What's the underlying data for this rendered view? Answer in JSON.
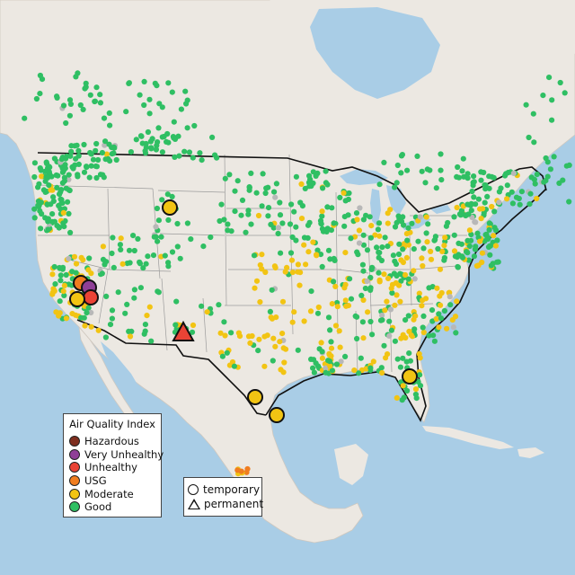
{
  "colors": {
    "water": "#a9cde6",
    "land": "#ece8e2",
    "state_border": "#9c9c9c",
    "country_border": "#111111",
    "hazardous": "#7e2e1f",
    "very_unhealthy": "#8f3f97",
    "unhealthy": "#ea4335",
    "usg": "#f07d1f",
    "moderate": "#f2c413",
    "good": "#2fbf63",
    "no_data": "#b8b8b8"
  },
  "legend": {
    "title": "Air Quality Index",
    "categories": [
      {
        "label": "Hazardous",
        "color_key": "hazardous"
      },
      {
        "label": "Very Unhealthy",
        "color_key": "very_unhealthy"
      },
      {
        "label": "Unhealthy",
        "color_key": "unhealthy"
      },
      {
        "label": "USG",
        "color_key": "usg"
      },
      {
        "label": "Moderate",
        "color_key": "moderate"
      },
      {
        "label": "Good",
        "color_key": "good"
      }
    ]
  },
  "marker_type_legend": {
    "items": [
      {
        "label": "temporary",
        "shape": "circle"
      },
      {
        "label": "permanent",
        "shape": "triangle"
      }
    ]
  },
  "highlighted_monitors": [
    {
      "location": "Montana",
      "category": "moderate",
      "type": "temporary"
    },
    {
      "location": "California (Sierra, north)",
      "category": "usg",
      "type": "temporary"
    },
    {
      "location": "California (Sierra)",
      "category": "very_unhealthy",
      "type": "temporary"
    },
    {
      "location": "California (Sierra, south)",
      "category": "unhealthy",
      "type": "temporary"
    },
    {
      "location": "California (Central Valley)",
      "category": "moderate",
      "type": "temporary"
    },
    {
      "location": "New Mexico",
      "category": "unhealthy",
      "type": "permanent"
    },
    {
      "location": "Texas (Houston)",
      "category": "moderate",
      "type": "temporary"
    },
    {
      "location": "Texas (Gulf coast)",
      "category": "moderate",
      "type": "temporary"
    },
    {
      "location": "Florida",
      "category": "moderate",
      "type": "temporary"
    }
  ]
}
